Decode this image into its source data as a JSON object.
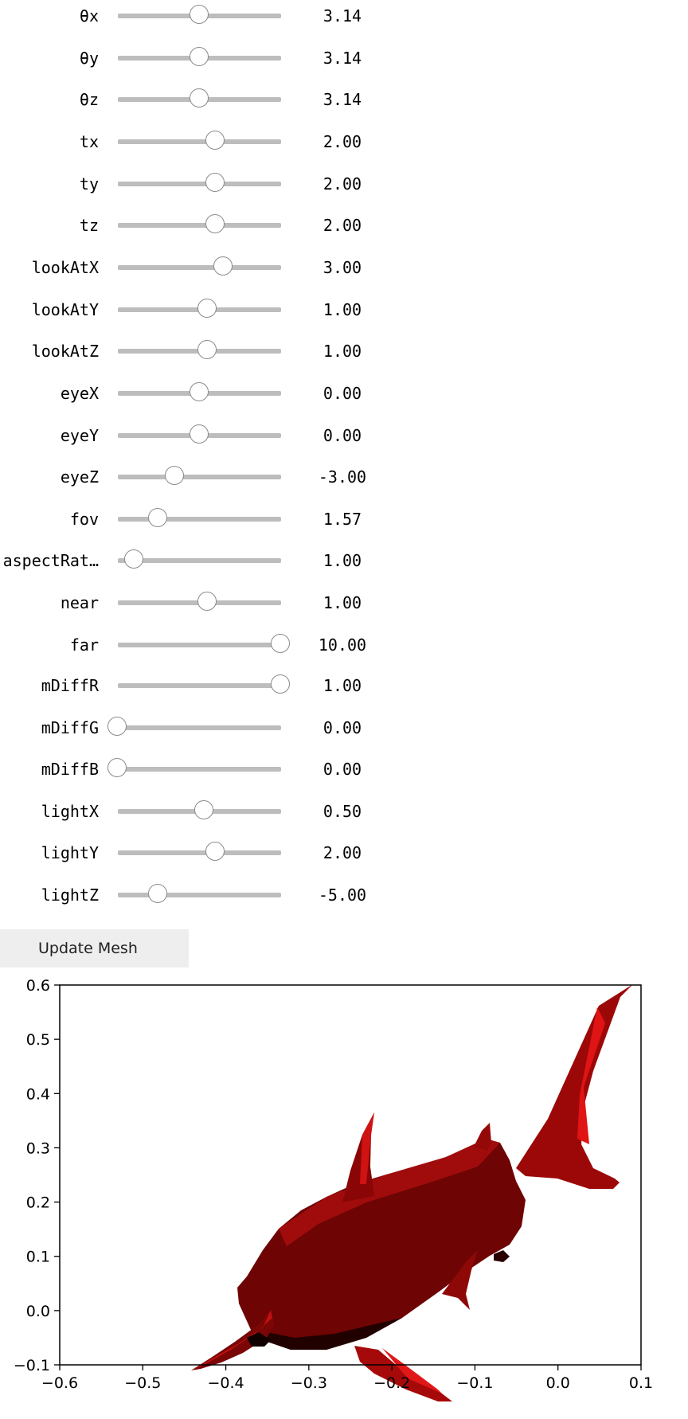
{
  "sliders": [
    {
      "id": "theta-x",
      "label": "θx",
      "value": "3.14",
      "fraction": 0.5
    },
    {
      "id": "theta-y",
      "label": "θy",
      "value": "3.14",
      "fraction": 0.5
    },
    {
      "id": "theta-z",
      "label": "θz",
      "value": "3.14",
      "fraction": 0.5
    },
    {
      "id": "tx",
      "label": "tx",
      "value": "2.00",
      "fraction": 0.6
    },
    {
      "id": "ty",
      "label": "ty",
      "value": "2.00",
      "fraction": 0.6
    },
    {
      "id": "tz",
      "label": "tz",
      "value": "2.00",
      "fraction": 0.6
    },
    {
      "id": "look-at-x",
      "label": "lookAtX",
      "value": "3.00",
      "fraction": 0.65
    },
    {
      "id": "look-at-y",
      "label": "lookAtY",
      "value": "1.00",
      "fraction": 0.55
    },
    {
      "id": "look-at-z",
      "label": "lookAtZ",
      "value": "1.00",
      "fraction": 0.55
    },
    {
      "id": "eye-x",
      "label": "eyeX",
      "value": "0.00",
      "fraction": 0.5
    },
    {
      "id": "eye-y",
      "label": "eyeY",
      "value": "0.00",
      "fraction": 0.5
    },
    {
      "id": "eye-z",
      "label": "eyeZ",
      "value": "-3.00",
      "fraction": 0.35
    },
    {
      "id": "fov",
      "label": "fov",
      "value": "1.57",
      "fraction": 0.25
    },
    {
      "id": "aspect-ratio",
      "label": "aspectRat…",
      "value": "1.00",
      "fraction": 0.1
    },
    {
      "id": "near",
      "label": "near",
      "value": "1.00",
      "fraction": 0.55
    },
    {
      "id": "far",
      "label": "far",
      "value": "10.00",
      "fraction": 1.0
    },
    {
      "id": "m-diff-r",
      "label": "mDiffR",
      "value": "1.00",
      "fraction": 1.0
    },
    {
      "id": "m-diff-g",
      "label": "mDiffG",
      "value": "0.00",
      "fraction": 0.0
    },
    {
      "id": "m-diff-b",
      "label": "mDiffB",
      "value": "0.00",
      "fraction": 0.0
    },
    {
      "id": "light-x",
      "label": "lightX",
      "value": "0.50",
      "fraction": 0.53
    },
    {
      "id": "light-y",
      "label": "lightY",
      "value": "2.00",
      "fraction": 0.6
    },
    {
      "id": "light-z",
      "label": "lightZ",
      "value": "-5.00",
      "fraction": 0.25
    }
  ],
  "update_button": {
    "label": "Update Mesh"
  },
  "chart_data": {
    "type": "image-plot",
    "xlim": [
      -0.6,
      0.1
    ],
    "ylim": [
      -0.1,
      0.6
    ],
    "xticks": [
      "−0.6",
      "−0.5",
      "−0.4",
      "−0.3",
      "−0.2",
      "−0.1",
      "0.0",
      "0.1"
    ],
    "yticks": [
      "−0.1",
      "0.0",
      "0.1",
      "0.2",
      "0.3",
      "0.4",
      "0.5",
      "0.6"
    ],
    "grid": false,
    "content": "red shaded 3D mesh of a hammerhead shark",
    "mesh_color": "#b00000"
  }
}
